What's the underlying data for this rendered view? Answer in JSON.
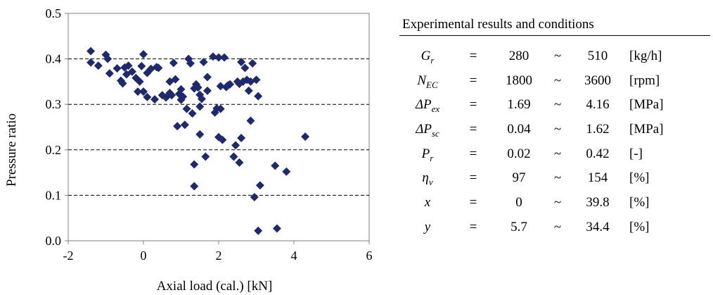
{
  "chart_data": {
    "type": "scatter",
    "title": "",
    "xlabel": "Axial load (cal.) [kN]",
    "ylabel": "Pressure ratio",
    "xlim": [
      -2,
      6
    ],
    "ylim": [
      0.0,
      0.5
    ],
    "x_ticks": [
      "-2",
      "0",
      "2",
      "4",
      "6"
    ],
    "y_ticks": [
      "0.0",
      "0.1",
      "0.2",
      "0.3",
      "0.4",
      "0.5"
    ],
    "grid": "horizontal dashed",
    "marker": "diamond",
    "marker_color": "#1f2a6e",
    "x": [
      -1.4,
      -1.4,
      -1.2,
      -1.0,
      -0.95,
      -0.9,
      -0.7,
      -0.6,
      -0.55,
      -0.5,
      -0.45,
      -0.4,
      -0.3,
      -0.2,
      -0.15,
      -0.1,
      -0.05,
      0.0,
      0.0,
      0.1,
      0.1,
      0.2,
      0.3,
      0.35,
      0.5,
      0.6,
      0.7,
      0.8,
      0.9,
      0.95,
      1.0,
      1.05,
      1.1,
      1.15,
      1.25,
      1.3,
      1.35,
      1.35,
      1.4,
      1.45,
      1.5,
      1.5,
      1.55,
      1.6,
      1.65,
      1.7,
      1.85,
      1.9,
      1.95,
      2.0,
      2.0,
      2.05,
      2.1,
      2.15,
      2.2,
      2.25,
      2.3,
      2.4,
      2.5,
      2.55,
      2.6,
      2.6,
      2.7,
      2.75,
      2.8,
      2.85,
      2.9,
      2.95,
      3.0,
      3.05,
      3.05,
      3.1,
      3.5,
      3.55,
      3.8,
      4.3,
      2.85,
      1.35,
      1.7,
      0.7,
      0.85,
      0.75,
      0.4,
      1.0,
      1.2,
      1.5,
      2.05,
      2.45,
      2.55,
      2.65
    ],
    "y": [
      0.417,
      0.392,
      0.385,
      0.409,
      0.4,
      0.368,
      0.379,
      0.352,
      0.346,
      0.381,
      0.366,
      0.385,
      0.372,
      0.358,
      0.328,
      0.35,
      0.384,
      0.41,
      0.328,
      0.316,
      0.369,
      0.378,
      0.311,
      0.382,
      0.32,
      0.315,
      0.325,
      0.391,
      0.252,
      0.323,
      0.333,
      0.317,
      0.255,
      0.29,
      0.39,
      0.28,
      0.335,
      0.168,
      0.344,
      0.337,
      0.321,
      0.234,
      0.312,
      0.393,
      0.185,
      0.33,
      0.405,
      0.282,
      0.291,
      0.403,
      0.228,
      0.34,
      0.222,
      0.403,
      0.338,
      0.342,
      0.344,
      0.185,
      0.35,
      0.172,
      0.393,
      0.226,
      0.38,
      0.354,
      0.33,
      0.264,
      0.39,
      0.096,
      0.354,
      0.318,
      0.022,
      0.122,
      0.165,
      0.027,
      0.152,
      0.229,
      0.35,
      0.12,
      0.36,
      0.35,
      0.355,
      0.32,
      0.38,
      0.31,
      0.4,
      0.295,
      0.29,
      0.21,
      0.345,
      0.35
    ]
  },
  "table": {
    "title": "Experimental results and conditions",
    "rows": [
      {
        "symbol": "G",
        "sub": "r",
        "eq": "=",
        "min": "280",
        "tilde": "~",
        "max": "510",
        "unit": "[kg/h]"
      },
      {
        "symbol": "N",
        "sub": "EC",
        "eq": "=",
        "min": "1800",
        "tilde": "~",
        "max": "3600",
        "unit": "[rpm]"
      },
      {
        "symbol": "ΔP",
        "sub": "ex",
        "eq": "=",
        "min": "1.69",
        "tilde": "~",
        "max": "4.16",
        "unit": "[MPa]"
      },
      {
        "symbol": "ΔP",
        "sub": "sc",
        "eq": "=",
        "min": "0.04",
        "tilde": "~",
        "max": "1.62",
        "unit": "[MPa]"
      },
      {
        "symbol": "P",
        "sub": "r",
        "eq": "=",
        "min": "0.02",
        "tilde": "~",
        "max": "0.42",
        "unit": "[-]"
      },
      {
        "symbol": "η",
        "sub": "v",
        "eq": "=",
        "min": "97",
        "tilde": "~",
        "max": "154",
        "unit": "[%]"
      },
      {
        "symbol": "x",
        "sub": "",
        "eq": "=",
        "min": "0",
        "tilde": "~",
        "max": "39.8",
        "unit": "[%]"
      },
      {
        "symbol": "y",
        "sub": "",
        "eq": "=",
        "min": "5.7",
        "tilde": "~",
        "max": "34.4",
        "unit": "[%]"
      }
    ]
  }
}
